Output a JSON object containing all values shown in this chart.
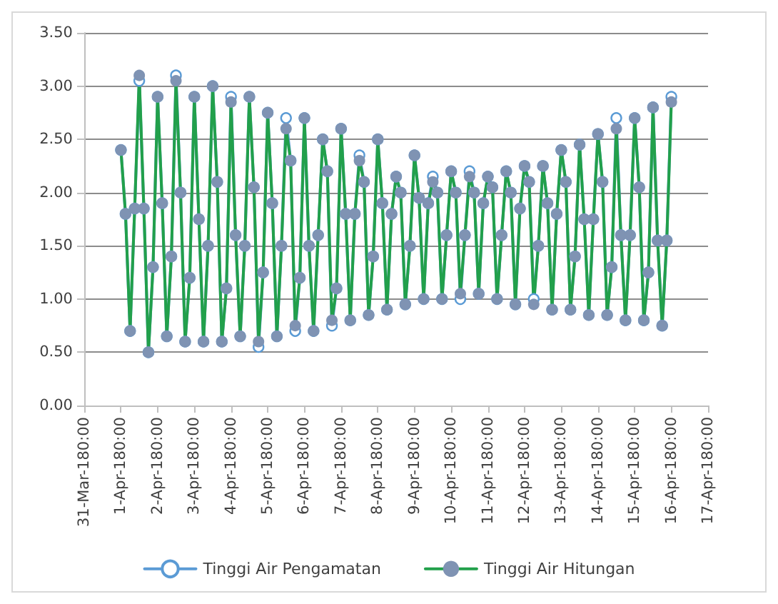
{
  "chart_data": {
    "type": "line",
    "legend": "bottom",
    "grid": "y",
    "marker": "circle",
    "line_style": "solid",
    "xlim": [
      "--03-31T00:00",
      "--04-17T00:00"
    ],
    "xticks": [
      {
        "value": "--03-31T00:00",
        "label": "31-Mar-180:00"
      },
      {
        "value": "--04-01T00:00",
        "label": "1-Apr-180:00"
      },
      {
        "value": "--04-02T00:00",
        "label": "2-Apr-180:00"
      },
      {
        "value": "--04-03T00:00",
        "label": "3-Apr-180:00"
      },
      {
        "value": "--04-04T00:00",
        "label": "4-Apr-180:00"
      },
      {
        "value": "--04-05T00:00",
        "label": "5-Apr-180:00"
      },
      {
        "value": "--04-06T00:00",
        "label": "6-Apr-180:00"
      },
      {
        "value": "--04-07T00:00",
        "label": "7-Apr-180:00"
      },
      {
        "value": "--04-08T00:00",
        "label": "8-Apr-180:00"
      },
      {
        "value": "--04-09T00:00",
        "label": "9-Apr-180:00"
      },
      {
        "value": "--04-10T00:00",
        "label": "10-Apr-180:00"
      },
      {
        "value": "--04-11T00:00",
        "label": "11-Apr-180:00"
      },
      {
        "value": "--04-12T00:00",
        "label": "12-Apr-180:00"
      },
      {
        "value": "--04-13T00:00",
        "label": "13-Apr-180:00"
      },
      {
        "value": "--04-14T00:00",
        "label": "14-Apr-180:00"
      },
      {
        "value": "--04-15T00:00",
        "label": "15-Apr-180:00"
      },
      {
        "value": "--04-16T00:00",
        "label": "16-Apr-180:00"
      },
      {
        "value": "--04-17T00:00",
        "label": "17-Apr-180:00"
      }
    ],
    "ylim": [
      0,
      3.5
    ],
    "yticks": [
      {
        "value": 0,
        "label": "0.00"
      },
      {
        "value": 0.5,
        "label": "0.50"
      },
      {
        "value": 1,
        "label": "1.00"
      },
      {
        "value": 1.5,
        "label": "1.50"
      },
      {
        "value": 2,
        "label": "2.00"
      },
      {
        "value": 2.5,
        "label": "2.50"
      },
      {
        "value": 3,
        "label": "3.00"
      },
      {
        "value": 3.5,
        "label": "3.50"
      }
    ],
    "x": [
      "--04-01T00:00",
      "--04-01T03:00",
      "--04-01T06:00",
      "--04-01T09:00",
      "--04-01T12:00",
      "--04-01T15:00",
      "--04-01T18:00",
      "--04-01T21:00",
      "--04-02T00:00",
      "--04-02T03:00",
      "--04-02T06:00",
      "--04-02T09:00",
      "--04-02T12:00",
      "--04-02T15:00",
      "--04-02T18:00",
      "--04-02T21:00",
      "--04-03T00:00",
      "--04-03T03:00",
      "--04-03T06:00",
      "--04-03T09:00",
      "--04-03T12:00",
      "--04-03T15:00",
      "--04-03T18:00",
      "--04-03T21:00",
      "--04-04T00:00",
      "--04-04T03:00",
      "--04-04T06:00",
      "--04-04T09:00",
      "--04-04T12:00",
      "--04-04T15:00",
      "--04-04T18:00",
      "--04-04T21:00",
      "--04-05T00:00",
      "--04-05T03:00",
      "--04-05T06:00",
      "--04-05T09:00",
      "--04-05T12:00",
      "--04-05T15:00",
      "--04-05T18:00",
      "--04-05T21:00",
      "--04-06T00:00",
      "--04-06T03:00",
      "--04-06T06:00",
      "--04-06T09:00",
      "--04-06T12:00",
      "--04-06T15:00",
      "--04-06T18:00",
      "--04-06T21:00",
      "--04-07T00:00",
      "--04-07T03:00",
      "--04-07T06:00",
      "--04-07T09:00",
      "--04-07T12:00",
      "--04-07T15:00",
      "--04-07T18:00",
      "--04-07T21:00",
      "--04-08T00:00",
      "--04-08T03:00",
      "--04-08T06:00",
      "--04-08T09:00",
      "--04-08T12:00",
      "--04-08T15:00",
      "--04-08T18:00",
      "--04-08T21:00",
      "--04-09T00:00",
      "--04-09T03:00",
      "--04-09T06:00",
      "--04-09T09:00",
      "--04-09T12:00",
      "--04-09T15:00",
      "--04-09T18:00",
      "--04-09T21:00",
      "--04-10T00:00",
      "--04-10T03:00",
      "--04-10T06:00",
      "--04-10T09:00",
      "--04-10T12:00",
      "--04-10T15:00",
      "--04-10T18:00",
      "--04-10T21:00",
      "--04-11T00:00",
      "--04-11T03:00",
      "--04-11T06:00",
      "--04-11T09:00",
      "--04-11T12:00",
      "--04-11T15:00",
      "--04-11T18:00",
      "--04-11T21:00",
      "--04-12T00:00",
      "--04-12T03:00",
      "--04-12T06:00",
      "--04-12T09:00",
      "--04-12T12:00",
      "--04-12T15:00",
      "--04-12T18:00",
      "--04-12T21:00",
      "--04-13T00:00",
      "--04-13T03:00",
      "--04-13T06:00",
      "--04-13T09:00",
      "--04-13T12:00",
      "--04-13T15:00",
      "--04-13T18:00",
      "--04-13T21:00",
      "--04-14T00:00",
      "--04-14T03:00",
      "--04-14T06:00",
      "--04-14T09:00",
      "--04-14T12:00",
      "--04-14T15:00",
      "--04-14T18:00",
      "--04-14T21:00",
      "--04-15T00:00",
      "--04-15T03:00",
      "--04-15T06:00",
      "--04-15T09:00",
      "--04-15T12:00",
      "--04-15T15:00",
      "--04-15T18:00",
      "--04-15T21:00",
      "--04-16T00:00"
    ],
    "series": [
      {
        "name": "Tinggi Air Pengamatan",
        "color": "#5b9bd5",
        "values": [
          2.4,
          1.8,
          0.7,
          1.85,
          3.05,
          1.85,
          0.5,
          1.3,
          2.9,
          1.9,
          0.65,
          1.4,
          3.1,
          2.0,
          0.6,
          1.2,
          2.9,
          1.75,
          0.6,
          1.5,
          3.0,
          2.1,
          0.6,
          1.1,
          2.9,
          1.6,
          0.65,
          1.5,
          2.9,
          2.05,
          0.55,
          1.25,
          2.75,
          1.9,
          0.65,
          1.5,
          2.7,
          2.3,
          0.7,
          1.2,
          2.7,
          1.5,
          0.7,
          1.6,
          2.5,
          2.2,
          0.75,
          1.1,
          2.6,
          1.8,
          0.8,
          1.8,
          2.35,
          2.1,
          0.85,
          1.4,
          2.5,
          1.9,
          0.9,
          1.8,
          2.15,
          2.0,
          0.95,
          1.5,
          2.35,
          1.95,
          1.0,
          1.9,
          2.15,
          2.0,
          1.0,
          1.6,
          2.2,
          2.0,
          1.0,
          1.6,
          2.2,
          2.0,
          1.05,
          1.9,
          2.15,
          2.05,
          1.0,
          1.6,
          2.2,
          2.0,
          0.95,
          1.85,
          2.25,
          2.1,
          1.0,
          1.5,
          2.25,
          1.9,
          0.9,
          1.8,
          2.4,
          2.1,
          0.9,
          1.4,
          2.45,
          1.75,
          0.85,
          1.75,
          2.55,
          2.1,
          0.85,
          1.3,
          2.7,
          1.6,
          0.8,
          1.6,
          2.7,
          2.05,
          0.8,
          1.25,
          2.8,
          1.55,
          0.75,
          1.55,
          2.9
        ]
      },
      {
        "name": "Tinggi Air Hitungan",
        "color": "#22a04b",
        "values": [
          2.4,
          1.8,
          0.7,
          1.85,
          3.1,
          1.85,
          0.5,
          1.3,
          2.9,
          1.9,
          0.65,
          1.4,
          3.05,
          2.0,
          0.6,
          1.2,
          2.9,
          1.75,
          0.6,
          1.5,
          3.0,
          2.1,
          0.6,
          1.1,
          2.85,
          1.6,
          0.65,
          1.5,
          2.9,
          2.05,
          0.6,
          1.25,
          2.75,
          1.9,
          0.65,
          1.5,
          2.6,
          2.3,
          0.75,
          1.2,
          2.7,
          1.5,
          0.7,
          1.6,
          2.5,
          2.2,
          0.8,
          1.1,
          2.6,
          1.8,
          0.8,
          1.8,
          2.3,
          2.1,
          0.85,
          1.4,
          2.5,
          1.9,
          0.9,
          1.8,
          2.15,
          2.0,
          0.95,
          1.5,
          2.35,
          1.95,
          1.0,
          1.9,
          2.1,
          2.0,
          1.0,
          1.6,
          2.2,
          2.0,
          1.05,
          1.6,
          2.15,
          2.0,
          1.05,
          1.9,
          2.15,
          2.05,
          1.0,
          1.6,
          2.2,
          2.0,
          0.95,
          1.85,
          2.25,
          2.1,
          0.95,
          1.5,
          2.25,
          1.9,
          0.9,
          1.8,
          2.4,
          2.1,
          0.9,
          1.4,
          2.45,
          1.75,
          0.85,
          1.75,
          2.55,
          2.1,
          0.85,
          1.3,
          2.6,
          1.6,
          0.8,
          1.6,
          2.7,
          2.05,
          0.8,
          1.25,
          2.8,
          1.55,
          0.75,
          1.55,
          2.85
        ]
      }
    ]
  }
}
